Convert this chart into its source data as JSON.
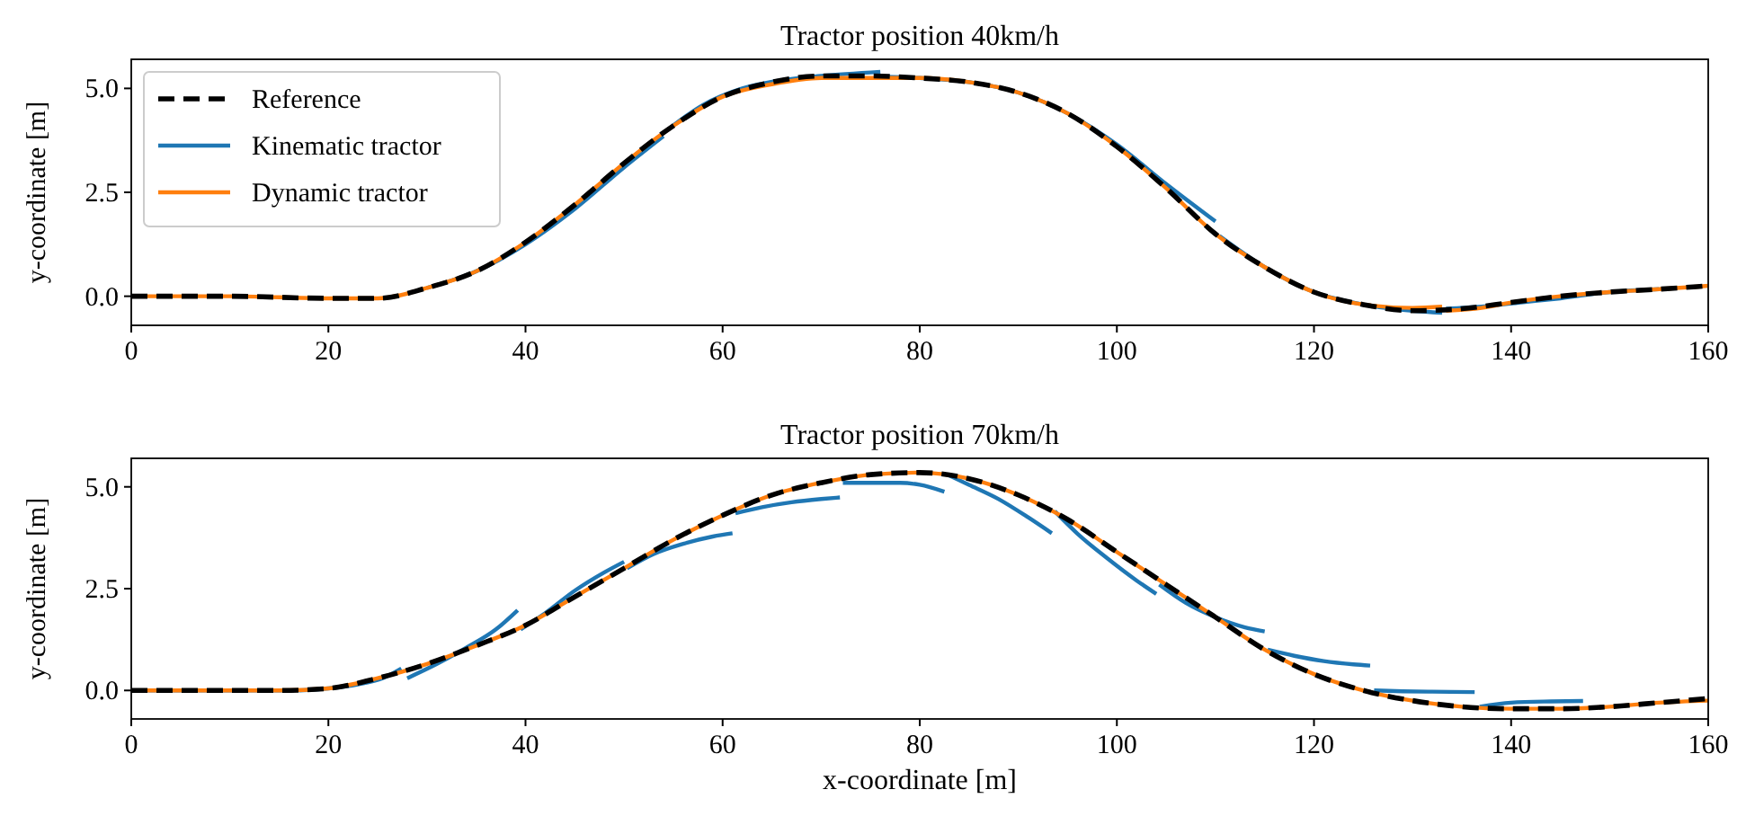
{
  "chart_data": [
    {
      "type": "line",
      "title": "Tractor position 40km/h",
      "ylabel": "y-coordinate [m]",
      "xlim": [
        0,
        160
      ],
      "xticks": [
        0,
        20,
        40,
        60,
        80,
        100,
        120,
        140,
        160
      ],
      "ylim": [
        -0.7,
        5.7
      ],
      "yticks": [
        {
          "value": 0,
          "label": "0.0"
        },
        {
          "value": 2.5,
          "label": "2.5"
        },
        {
          "value": 5,
          "label": "5.0"
        }
      ],
      "legend": "top left",
      "series": [
        {
          "name": "Reference",
          "color": "#000000",
          "line_style": "dashed",
          "x": [
            0,
            10,
            20,
            25,
            30,
            35,
            40,
            45,
            50,
            55,
            60,
            65,
            70,
            75,
            80,
            85,
            90,
            95,
            100,
            105,
            110,
            115,
            120,
            125,
            130,
            135,
            140,
            145,
            150,
            155,
            160
          ],
          "values": [
            0,
            0,
            -0.05,
            -0.05,
            0.2,
            0.6,
            1.3,
            2.2,
            3.2,
            4.1,
            4.8,
            5.15,
            5.3,
            5.3,
            5.25,
            5.15,
            4.9,
            4.4,
            3.6,
            2.6,
            1.5,
            0.7,
            0.1,
            -0.2,
            -0.35,
            -0.3,
            -0.15,
            0,
            0.1,
            0.17,
            0.25
          ]
        },
        {
          "name": "Kinematic tractor",
          "color": "#1f77b4",
          "line_style": "solid",
          "x": [
            30,
            35,
            40,
            45,
            50,
            54,
            54.2,
            54.4,
            58,
            62,
            66,
            70,
            76,
            76.2,
            76.4,
            80,
            85,
            90,
            95,
            100,
            105,
            110,
            110.2,
            110.4,
            115,
            120,
            125,
            130,
            133,
            133.2,
            133.4,
            137,
            141,
            145,
            150,
            155
          ],
          "values": [
            0.2,
            0.6,
            1.25,
            2.1,
            3.1,
            3.85,
            null,
            4.0,
            4.6,
            5.0,
            5.2,
            5.3,
            5.4,
            null,
            5.28,
            5.25,
            5.15,
            4.9,
            4.4,
            3.65,
            2.7,
            1.8,
            null,
            1.45,
            0.7,
            0.1,
            -0.2,
            -0.35,
            -0.4,
            null,
            -0.3,
            -0.25,
            -0.15,
            -0.05,
            0.1,
            0.17
          ]
        },
        {
          "name": "Dynamic tractor",
          "color": "#ff7f0e",
          "line_style": "solid",
          "x": [
            0,
            10,
            20,
            25,
            30,
            35,
            40,
            45,
            50,
            55,
            60,
            65,
            70,
            75,
            80,
            85,
            90,
            95,
            100,
            105,
            110,
            115,
            120,
            125,
            130,
            133,
            133.2,
            133.4,
            137,
            140,
            145,
            150,
            155,
            160
          ],
          "values": [
            0,
            0,
            -0.05,
            -0.05,
            0.2,
            0.6,
            1.3,
            2.2,
            3.2,
            4.1,
            4.8,
            5.1,
            5.25,
            5.25,
            5.25,
            5.15,
            4.9,
            4.4,
            3.6,
            2.6,
            1.5,
            0.7,
            0.1,
            -0.2,
            -0.28,
            -0.25,
            null,
            -0.35,
            -0.28,
            -0.15,
            0,
            0.1,
            0.17,
            0.25
          ]
        }
      ]
    },
    {
      "type": "line",
      "title": "Tractor position 70km/h",
      "xlabel": "x-coordinate [m]",
      "ylabel": "y-coordinate [m]",
      "xlim": [
        0,
        160
      ],
      "xticks": [
        0,
        20,
        40,
        60,
        80,
        100,
        120,
        140,
        160
      ],
      "ylim": [
        -0.7,
        5.7
      ],
      "yticks": [
        {
          "value": 0,
          "label": "0.0"
        },
        {
          "value": 2.5,
          "label": "2.5"
        },
        {
          "value": 5,
          "label": "5.0"
        }
      ],
      "series": [
        {
          "color": "#000000",
          "line_style": "dashed",
          "x": [
            0,
            15,
            20,
            25,
            30,
            35,
            40,
            45,
            50,
            55,
            60,
            65,
            70,
            75,
            80,
            85,
            90,
            95,
            100,
            105,
            110,
            115,
            120,
            125,
            130,
            135,
            140,
            145,
            150,
            155,
            160
          ],
          "values": [
            0,
            0,
            0.05,
            0.3,
            0.65,
            1.1,
            1.6,
            2.3,
            3.0,
            3.7,
            4.3,
            4.8,
            5.1,
            5.3,
            5.35,
            5.2,
            4.8,
            4.2,
            3.4,
            2.6,
            1.8,
            1.0,
            0.4,
            0,
            -0.25,
            -0.4,
            -0.45,
            -0.45,
            -0.4,
            -0.3,
            -0.2
          ]
        },
        {
          "color": "#1f77b4",
          "line_style": "solid",
          "x": [
            0,
            8,
            16.5,
            16.8,
            17,
            20,
            23,
            25.5,
            27.4,
            27.7,
            28,
            31,
            34,
            37,
            39.2,
            39.4,
            39.5,
            42,
            45,
            48,
            50,
            50.2,
            50.3,
            53,
            56,
            59,
            61,
            61.2,
            61.3,
            64,
            67,
            70,
            71.9,
            72.1,
            72.2,
            75,
            78,
            80,
            82.5,
            82.7,
            82.8,
            85,
            88,
            91,
            93.4,
            93.6,
            93.7,
            96,
            99,
            102,
            104,
            104.2,
            104.3,
            107,
            110,
            113,
            115,
            115.2,
            115.3,
            118,
            121,
            124,
            125.7,
            126,
            126.1,
            129,
            132,
            136.3,
            136.6,
            136.8,
            140,
            144,
            147.3
          ],
          "values": [
            0,
            0,
            0,
            null,
            0,
            0.05,
            0.15,
            0.3,
            0.54,
            null,
            0.3,
            0.65,
            1.05,
            1.5,
            1.97,
            null,
            1.5,
            1.9,
            2.45,
            2.9,
            3.16,
            null,
            3.0,
            3.35,
            3.6,
            3.78,
            3.86,
            null,
            4.35,
            4.5,
            4.62,
            4.7,
            4.74,
            null,
            5.1,
            5.1,
            5.1,
            5.05,
            4.88,
            null,
            5.3,
            5.05,
            4.7,
            4.25,
            3.86,
            null,
            4.4,
            3.85,
            3.25,
            2.7,
            2.37,
            null,
            2.6,
            2.15,
            1.8,
            1.55,
            1.45,
            null,
            1.0,
            0.85,
            0.72,
            0.64,
            0.61,
            null,
            0,
            -0.02,
            -0.03,
            -0.04,
            null,
            -0.4,
            -0.3,
            -0.27,
            -0.26
          ]
        },
        {
          "color": "#ff7f0e",
          "line_style": "solid",
          "x": [
            0,
            15,
            20,
            25,
            30,
            35,
            40,
            45,
            50,
            55,
            60,
            65,
            70,
            75,
            80,
            85,
            90,
            95,
            100,
            105,
            110,
            115,
            120,
            125,
            130,
            135,
            140,
            145,
            150,
            155,
            160
          ],
          "values": [
            0,
            0,
            0.05,
            0.3,
            0.65,
            1.1,
            1.6,
            2.3,
            3.0,
            3.7,
            4.3,
            4.8,
            5.1,
            5.3,
            5.35,
            5.2,
            4.8,
            4.2,
            3.4,
            2.6,
            1.8,
            1.0,
            0.4,
            0,
            -0.25,
            -0.4,
            -0.45,
            -0.45,
            -0.4,
            -0.3,
            -0.25
          ]
        }
      ]
    }
  ]
}
